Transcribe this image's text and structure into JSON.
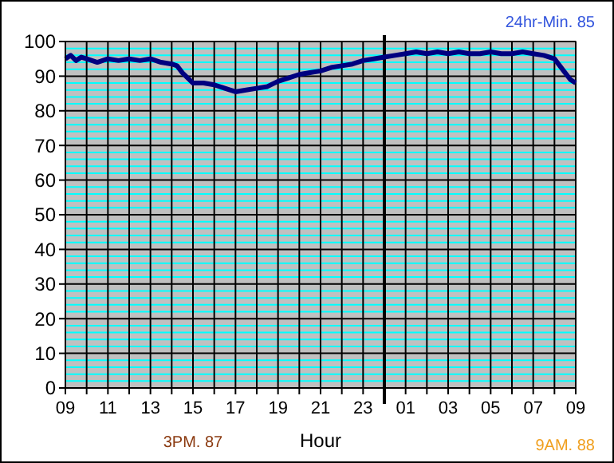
{
  "chart_data": {
    "type": "line",
    "xlabel": "Hour",
    "annotations": [
      "24hr-Min. 85",
      "3PM. 87",
      "9AM. 88"
    ],
    "x": [
      "--01-01T09:00",
      "--01-01T09:15",
      "--01-01T09:30",
      "--01-01T09:45",
      "--01-01T10:00",
      "--01-01T10:30",
      "--01-01T11:00",
      "--01-01T11:30",
      "--01-01T12:00",
      "--01-01T12:30",
      "--01-01T13:00",
      "--01-01T13:30",
      "--01-01T14:00",
      "--01-01T14:15",
      "--01-01T14:30",
      "--01-01T14:45",
      "--01-01T15:00",
      "--01-01T15:30",
      "--01-01T16:00",
      "--01-01T16:30",
      "--01-01T17:00",
      "--01-01T17:30",
      "--01-01T18:00",
      "--01-01T18:30",
      "--01-01T19:00",
      "--01-01T19:30",
      "--01-01T20:00",
      "--01-01T20:30",
      "--01-01T21:00",
      "--01-01T21:30",
      "--01-01T22:00",
      "--01-01T22:30",
      "--01-01T23:00",
      "--01-01T23:30",
      "--01-02T00:00",
      "--01-02T00:30",
      "--01-02T01:00",
      "--01-02T01:30",
      "--01-02T02:00",
      "--01-02T02:30",
      "--01-02T03:00",
      "--01-02T03:30",
      "--01-02T04:00",
      "--01-02T04:30",
      "--01-02T05:00",
      "--01-02T05:30",
      "--01-02T06:00",
      "--01-02T06:30",
      "--01-02T07:00",
      "--01-02T07:30",
      "--01-02T08:00",
      "--01-02T08:15",
      "--01-02T08:30",
      "--01-02T08:45",
      "--01-02T09:00"
    ],
    "series": [
      {
        "color": "#000080",
        "values": [
          95,
          96,
          94.5,
          95.5,
          95,
          94,
          95,
          94.5,
          95,
          94.5,
          95,
          94,
          93.5,
          93,
          91,
          89.5,
          88,
          88,
          87.5,
          86.5,
          85.5,
          86,
          86.5,
          87,
          88.5,
          89.5,
          90.5,
          91,
          91.5,
          92.5,
          93,
          93.5,
          94.5,
          95,
          95.5,
          96,
          96.5,
          97,
          96.5,
          97,
          96.5,
          97,
          96.5,
          96.5,
          97,
          96.5,
          96.5,
          97,
          96.5,
          96,
          95,
          93,
          91,
          89,
          88
        ]
      }
    ],
    "xlim": [
      "--01-01T09:00",
      "--01-02T09:00"
    ],
    "xticks": [
      {
        "value": "--01-01T09:00",
        "label": "09"
      },
      {
        "value": "--01-01T10:00",
        "label": null
      },
      {
        "value": "--01-01T11:00",
        "label": "11"
      },
      {
        "value": "--01-01T12:00",
        "label": null
      },
      {
        "value": "--01-01T13:00",
        "label": "13"
      },
      {
        "value": "--01-01T14:00",
        "label": null
      },
      {
        "value": "--01-01T15:00",
        "label": "15"
      },
      {
        "value": "--01-01T16:00",
        "label": null
      },
      {
        "value": "--01-01T17:00",
        "label": "17"
      },
      {
        "value": "--01-01T18:00",
        "label": null
      },
      {
        "value": "--01-01T19:00",
        "label": "19"
      },
      {
        "value": "--01-01T20:00",
        "label": null
      },
      {
        "value": "--01-01T21:00",
        "label": "21"
      },
      {
        "value": "--01-01T22:00",
        "label": null
      },
      {
        "value": "--01-01T23:00",
        "label": "23"
      },
      {
        "value": "--01-02T00:00",
        "label": null
      },
      {
        "value": "--01-02T01:00",
        "label": "01"
      },
      {
        "value": "--01-02T02:00",
        "label": null
      },
      {
        "value": "--01-02T03:00",
        "label": "03"
      },
      {
        "value": "--01-02T04:00",
        "label": null
      },
      {
        "value": "--01-02T05:00",
        "label": "05"
      },
      {
        "value": "--01-02T06:00",
        "label": null
      },
      {
        "value": "--01-02T07:00",
        "label": "07"
      },
      {
        "value": "--01-02T08:00",
        "label": null
      },
      {
        "value": "--01-02T09:00",
        "label": "09"
      }
    ],
    "ylim": [
      0,
      100
    ],
    "yticks": [
      0,
      {
        "value": 2,
        "label": null
      },
      {
        "value": 4,
        "label": null
      },
      {
        "value": 6,
        "label": null
      },
      {
        "value": 8,
        "label": null
      },
      10,
      {
        "value": 12,
        "label": null
      },
      {
        "value": 14,
        "label": null
      },
      {
        "value": 16,
        "label": null
      },
      {
        "value": 18,
        "label": null
      },
      20,
      {
        "value": 22,
        "label": null
      },
      {
        "value": 24,
        "label": null
      },
      {
        "value": 26,
        "label": null
      },
      {
        "value": 28,
        "label": null
      },
      30,
      {
        "value": 32,
        "label": null
      },
      {
        "value": 34,
        "label": null
      },
      {
        "value": 36,
        "label": null
      },
      {
        "value": 38,
        "label": null
      },
      40,
      {
        "value": 42,
        "label": null
      },
      {
        "value": 44,
        "label": null
      },
      {
        "value": 46,
        "label": null
      },
      {
        "value": 48,
        "label": null
      },
      50,
      {
        "value": 52,
        "label": null
      },
      {
        "value": 54,
        "label": null
      },
      {
        "value": 56,
        "label": null
      },
      {
        "value": 58,
        "label": null
      },
      60,
      {
        "value": 62,
        "label": null
      },
      {
        "value": 64,
        "label": null
      },
      {
        "value": 66,
        "label": null
      },
      {
        "value": 68,
        "label": null
      },
      70,
      {
        "value": 72,
        "label": null
      },
      {
        "value": 74,
        "label": null
      },
      {
        "value": 76,
        "label": null
      },
      {
        "value": 78,
        "label": null
      },
      80,
      {
        "value": 82,
        "label": null
      },
      {
        "value": 84,
        "label": null
      },
      {
        "value": 86,
        "label": null
      },
      {
        "value": 88,
        "label": null
      },
      90,
      {
        "value": 92,
        "label": null
      },
      {
        "value": 94,
        "label": null
      },
      {
        "value": 96,
        "label": null
      },
      {
        "value": 98,
        "label": null
      },
      100
    ],
    "grid": true,
    "marker": "none",
    "line_style": "solid",
    "ref_lines": [
      {
        "axis": "x",
        "value": "--01-02T00:00",
        "color": "#000000"
      }
    ]
  }
}
